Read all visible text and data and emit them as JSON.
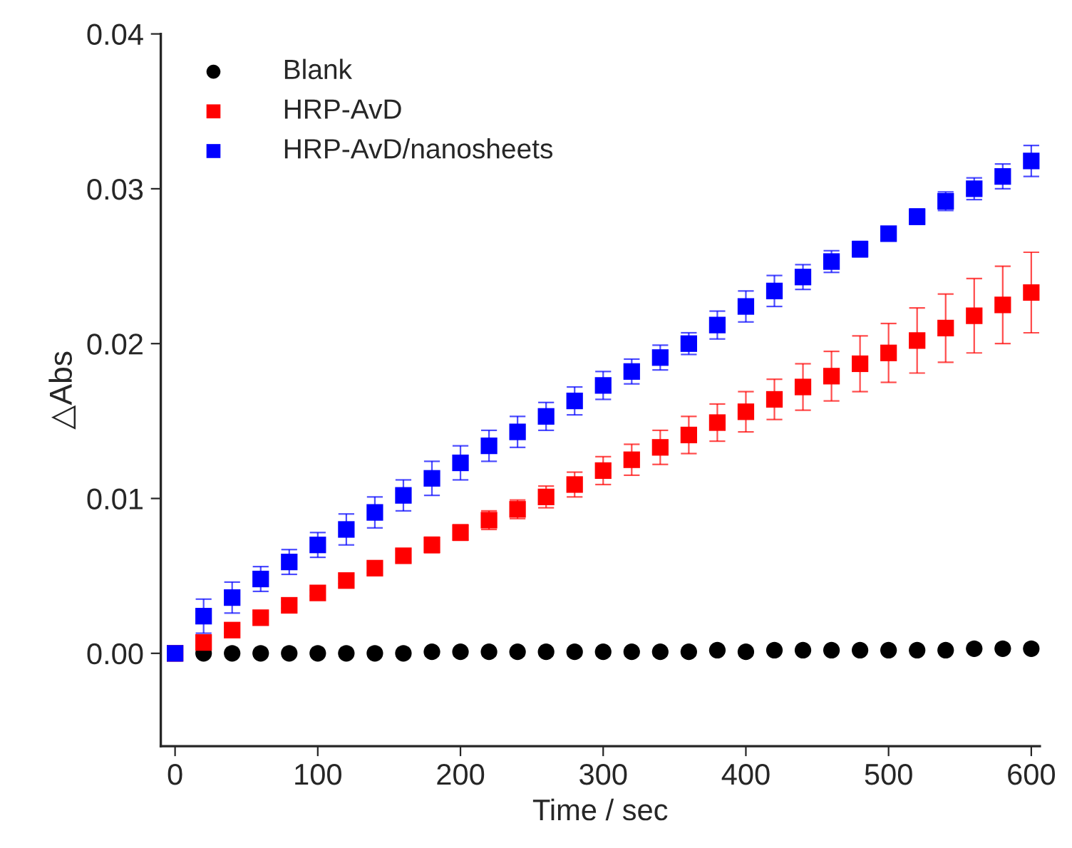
{
  "chart_data": {
    "type": "scatter",
    "xlabel": "Time / sec",
    "ylabel": "△Abs",
    "x": [
      0,
      20,
      40,
      60,
      80,
      100,
      120,
      140,
      160,
      180,
      200,
      220,
      240,
      260,
      280,
      300,
      320,
      340,
      360,
      380,
      400,
      420,
      440,
      460,
      480,
      500,
      520,
      540,
      560,
      580,
      600
    ],
    "series": [
      {
        "name": "Blank",
        "color": "#000000",
        "marker": "circle",
        "values": [
          null,
          0,
          0,
          0,
          0,
          0,
          0,
          0,
          0,
          0.0001,
          0.0001,
          0.0001,
          0.0001,
          0.0001,
          0.0001,
          0.0001,
          0.0001,
          0.0001,
          0.0001,
          0.0002,
          0.0001,
          0.0002,
          0.0002,
          0.0002,
          0.0002,
          0.0002,
          0.0002,
          0.0002,
          0.0003,
          0.0003,
          0.0003
        ]
      },
      {
        "name": "HRP-AvD",
        "color": "#ff0000",
        "marker": "square",
        "values": [
          0,
          0.0007,
          0.0015,
          0.0023,
          0.0031,
          0.0039,
          0.0047,
          0.0055,
          0.0063,
          0.007,
          0.0078,
          0.0086,
          0.0093,
          0.0101,
          0.0109,
          0.0118,
          0.0125,
          0.0133,
          0.0141,
          0.0149,
          0.0156,
          0.0164,
          0.0172,
          0.0179,
          0.0187,
          0.0194,
          0.0202,
          0.021,
          0.0218,
          0.0225,
          0.0233
        ],
        "errors": [
          0,
          0.0002,
          0.0002,
          0.0002,
          0.0002,
          0.0002,
          0.0002,
          0.0003,
          0.0004,
          0.0005,
          0.0005,
          0.0006,
          0.0006,
          0.0007,
          0.0008,
          0.0009,
          0.001,
          0.0011,
          0.0012,
          0.0012,
          0.0013,
          0.0013,
          0.0015,
          0.0016,
          0.0018,
          0.0019,
          0.0021,
          0.0022,
          0.0024,
          0.0025,
          0.0026
        ]
      },
      {
        "name": "HRP-AvD/nanosheets",
        "color": "#0000ff",
        "marker": "square",
        "values": [
          0,
          0.0024,
          0.0036,
          0.0048,
          0.0059,
          0.007,
          0.008,
          0.0091,
          0.0102,
          0.0113,
          0.0123,
          0.0134,
          0.0143,
          0.0153,
          0.0163,
          0.0173,
          0.0182,
          0.0191,
          0.02,
          0.0212,
          0.0224,
          0.0234,
          0.0243,
          0.0253,
          0.0261,
          0.0271,
          0.0282,
          0.0292,
          0.03,
          0.0308,
          0.0318
        ],
        "errors": [
          0,
          0.0011,
          0.001,
          0.0008,
          0.0008,
          0.0008,
          0.001,
          0.001,
          0.001,
          0.0011,
          0.0011,
          0.001,
          0.001,
          0.0009,
          0.0009,
          0.0009,
          0.0008,
          0.0008,
          0.0007,
          0.0009,
          0.001,
          0.001,
          0.0008,
          0.0007,
          0.0005,
          0.0004,
          0.0005,
          0.0006,
          0.0007,
          0.0008,
          0.001
        ]
      }
    ],
    "xlim": [
      -10,
      606
    ],
    "ylim": [
      -0.006,
      0.04
    ],
    "xticks": [
      0,
      100,
      200,
      300,
      400,
      500,
      600
    ],
    "yticks": [
      {
        "value": 0,
        "label": "0.00"
      },
      {
        "value": 0.01,
        "label": "0.01"
      },
      {
        "value": 0.02,
        "label": "0.02"
      },
      {
        "value": 0.03,
        "label": "0.03"
      },
      {
        "value": 0.04,
        "label": "0.04"
      }
    ],
    "legend": "top left",
    "grid": false
  }
}
